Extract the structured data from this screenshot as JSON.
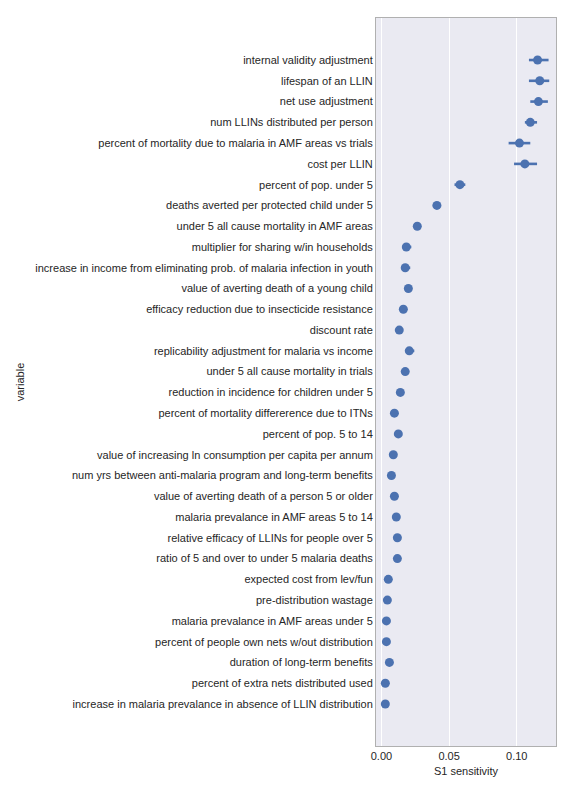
{
  "chart_data": {
    "type": "point",
    "orientation": "horizontal",
    "xlabel": "S1 sensitivity",
    "ylabel": "variable",
    "color": "#4c72b0",
    "grid": true,
    "xlim": [
      -0.004,
      0.129
    ],
    "xticks": [
      {
        "value": 0,
        "label": "0.00"
      },
      {
        "value": 0.05,
        "label": "0.05"
      },
      {
        "value": 0.1,
        "label": "0.10"
      }
    ],
    "categories": [
      "internal validity adjustment",
      "lifespan of an LLIN",
      "net use adjustment",
      "num LLINs distributed per person",
      "percent of mortality due to malaria in AMF areas vs trials",
      "cost per LLIN",
      "percent of pop. under 5",
      "deaths averted per protected child under 5",
      "under 5 all cause mortality in AMF areas",
      "multiplier for sharing w/in households",
      "increase in income from eliminating prob. of malaria infection in youth",
      "value of averting death of a young child",
      "efficacy reduction due to insecticide resistance",
      "discount rate",
      "replicability adjustment for malaria vs income",
      "under 5 all cause mortality in trials",
      "reduction in incidence for children under 5",
      "percent of mortality differerence due to ITNs",
      "percent of pop. 5 to 14",
      "value of increasing ln consumption per capita per annum",
      "num yrs between anti-malaria program and long-term benefits",
      "value of averting death of a person 5 or older",
      "malaria prevalance in AMF areas 5 to 14",
      "relative efficacy of LLINs for people over 5",
      "ratio of 5 and over to under 5 malaria deaths",
      "expected cost from lev/fun",
      "pre-distribution wastage",
      "malaria prevalance in AMF areas under 5",
      "percent of people own nets w/out distribution",
      "duration of long-term benefits",
      "percent of extra nets distributed used",
      "increase in malaria prevalance in absence of LLIN distribution"
    ],
    "values": [
      0.1154,
      0.117,
      0.116,
      0.11,
      0.102,
      0.106,
      0.058,
      0.041,
      0.0265,
      0.0184,
      0.0176,
      0.0199,
      0.0162,
      0.0132,
      0.0206,
      0.0176,
      0.014,
      0.0096,
      0.0125,
      0.0088,
      0.0074,
      0.0096,
      0.011,
      0.0118,
      0.0118,
      0.0051,
      0.0044,
      0.0037,
      0.0037,
      0.0059,
      0.0029,
      0.0029
    ],
    "ci": [
      [
        0.109,
        0.1235
      ],
      [
        0.109,
        0.124
      ],
      [
        0.11,
        0.123
      ],
      [
        0.106,
        0.115
      ],
      [
        0.094,
        0.11
      ],
      [
        0.098,
        0.115
      ],
      [
        0.054,
        0.062
      ],
      [
        0.038,
        0.044
      ],
      [
        0.0243,
        0.0287
      ],
      [
        0.0162,
        0.0221
      ],
      [
        0.0154,
        0.0213
      ],
      [
        0.0177,
        0.0221
      ],
      [
        0.0147,
        0.0184
      ],
      [
        0.0118,
        0.0147
      ],
      [
        0.0177,
        0.0243
      ],
      [
        0.0162,
        0.0199
      ],
      [
        0.0125,
        0.0154
      ],
      [
        0.0086,
        0.0106
      ],
      [
        0.0114,
        0.0136
      ],
      [
        0.0078,
        0.0098
      ],
      [
        0.0064,
        0.0084
      ],
      [
        0.0086,
        0.0106
      ],
      [
        0.01,
        0.012
      ],
      [
        0.0108,
        0.0128
      ],
      [
        0.0108,
        0.0128
      ],
      [
        0.0043,
        0.0059
      ],
      [
        0.0036,
        0.0052
      ],
      [
        0.0029,
        0.0045
      ],
      [
        0.0029,
        0.0045
      ],
      [
        0.0051,
        0.0067
      ],
      [
        0.0021,
        0.0037
      ],
      [
        0.0021,
        0.0037
      ]
    ]
  }
}
